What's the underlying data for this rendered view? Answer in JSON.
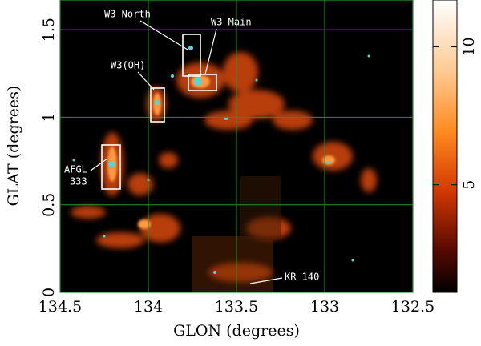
{
  "chart_data": {
    "type": "image",
    "xlabel": "GLON (degrees)",
    "ylabel": "GLAT (degrees)",
    "xlim": [
      134.5,
      132.5
    ],
    "ylim": [
      0,
      1.67
    ],
    "xticks": [
      134.5,
      134,
      133.5,
      133,
      132.5
    ],
    "yticks": [
      0,
      0.5,
      1,
      1.5
    ],
    "grid": true,
    "grid_color": "#2f8f2f",
    "colorbar": {
      "lim": [
        1.1,
        11.7
      ],
      "ticks": [
        5,
        10
      ]
    },
    "annotations": [
      {
        "text": "W3 North"
      },
      {
        "text": "W3 Main"
      },
      {
        "text": "W3(OH)"
      },
      {
        "lines": [
          "AFGL",
          "333"
        ]
      },
      {
        "text": "KR 140"
      }
    ]
  }
}
